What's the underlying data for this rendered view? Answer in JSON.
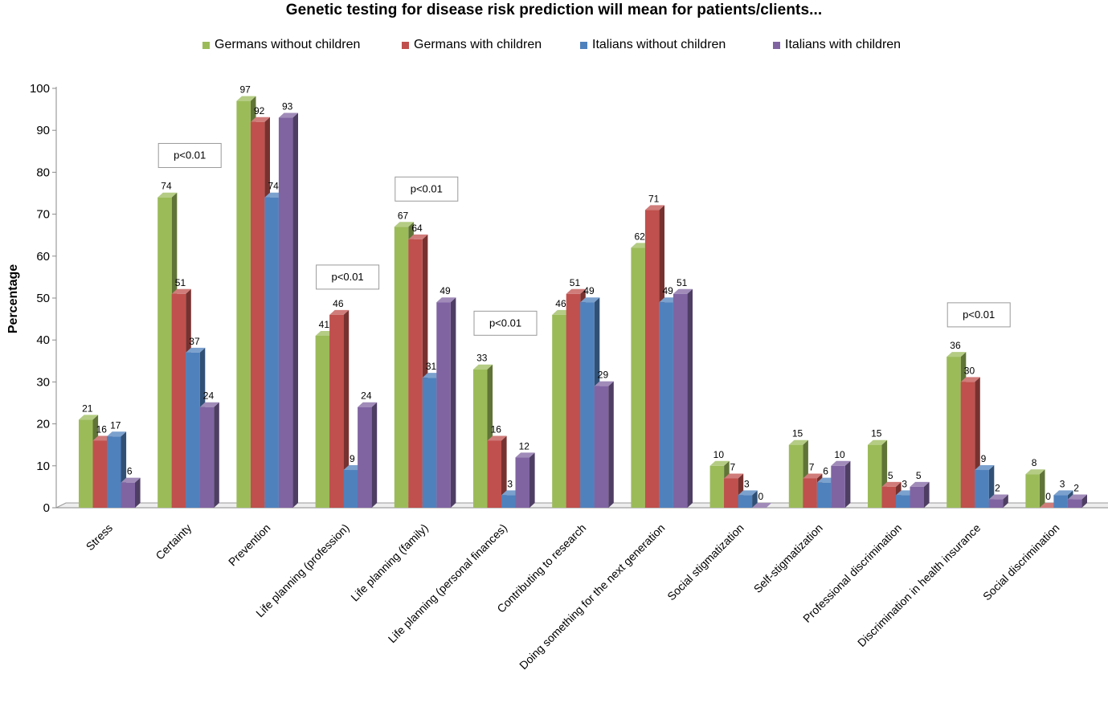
{
  "chart_data": {
    "type": "bar",
    "title": "Genetic testing for disease risk prediction will mean for patients/clients...",
    "ylabel": "Percentage",
    "xlabel": "",
    "ylim": [
      0,
      100
    ],
    "yticks": [
      0,
      10,
      20,
      30,
      40,
      50,
      60,
      70,
      80,
      90,
      100
    ],
    "grid": false,
    "legend_position": "top",
    "categories": [
      "Stress",
      "Certainty",
      "Prevention",
      "Life planning (profession)",
      "Life planning (family)",
      "Life planning (personal finances)",
      "Contributing to research",
      "Doing something for the next generation",
      "Social stigmatization",
      "Self-stigmatization",
      "Professional discrimination",
      "Discrimination in health insurance",
      "Social discrimination"
    ],
    "series": [
      {
        "name": "Germans without children",
        "color": "#9bbb59",
        "values": [
          21,
          74,
          97,
          41,
          67,
          33,
          46,
          62,
          10,
          15,
          15,
          36,
          8
        ]
      },
      {
        "name": "Germans with children",
        "color": "#c0504d",
        "values": [
          16,
          51,
          92,
          46,
          64,
          16,
          51,
          71,
          7,
          7,
          5,
          30,
          0
        ]
      },
      {
        "name": "Italians without children",
        "color": "#4f81bd",
        "values": [
          17,
          37,
          74,
          9,
          31,
          3,
          49,
          49,
          3,
          6,
          3,
          9,
          3
        ]
      },
      {
        "name": "Italians with children",
        "color": "#8064a2",
        "values": [
          6,
          24,
          93,
          24,
          49,
          12,
          29,
          51,
          0,
          10,
          5,
          2,
          2
        ]
      }
    ],
    "annotations": [
      {
        "text": "p<0.01",
        "category": "Certainty",
        "y_value": 84
      },
      {
        "text": "p<0.01",
        "category": "Life planning (profession)",
        "y_value": 55
      },
      {
        "text": "p<0.01",
        "category": "Life planning (family)",
        "y_value": 76
      },
      {
        "text": "p<0.01",
        "category": "Life planning (personal finances)",
        "y_value": 44
      },
      {
        "text": "p<0.01",
        "category": "Discrimination in health insurance",
        "y_value": 46
      }
    ]
  }
}
